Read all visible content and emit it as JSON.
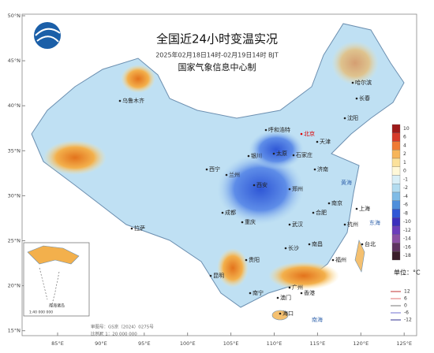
{
  "header": {
    "title": "全国近24小时变温实况",
    "subtitle": "2025年02月18日14时-02月19日14时 BJT",
    "org": "国家气象信息中心制"
  },
  "lat_labels": [
    "50°N",
    "45°N",
    "40°N",
    "35°N",
    "30°N",
    "25°N",
    "20°N",
    "15°N"
  ],
  "lon_labels": [
    "85°E",
    "90°E",
    "95°E",
    "100°E",
    "105°E",
    "110°E",
    "115°E",
    "120°E",
    "125°E"
  ],
  "cities": [
    "乌鲁木齐",
    "哈尔滨",
    "长春",
    "沈阳",
    "呼和浩特",
    "北京",
    "天津",
    "石家庄",
    "太原",
    "济南",
    "银川",
    "西宁",
    "兰州",
    "西安",
    "郑州",
    "拉萨",
    "成都",
    "重庆",
    "武汉",
    "合肥",
    "南京",
    "上海",
    "杭州",
    "长沙",
    "南昌",
    "福州",
    "贵阳",
    "昆明",
    "南宁",
    "广州",
    "香港",
    "澳门",
    "海口",
    "台北"
  ],
  "seas": [
    "黄海",
    "东海",
    "南海"
  ],
  "legend": {
    "items": [
      "10",
      "6",
      "4",
      "2",
      "1",
      "0",
      "-1",
      "-2",
      "-4",
      "-6",
      "-8",
      "-10",
      "-12",
      "-14",
      "-16",
      "-18"
    ],
    "unit": "单位：°C",
    "lines": [
      "12",
      "6",
      "0",
      "-6",
      "-12"
    ]
  },
  "inset": {
    "title": "南海诸岛",
    "scale": "1:40 000 000"
  },
  "footer": {
    "approval": "审图号：GS京（2024）0275号",
    "scale": "比例尺 1：20 000 000"
  }
}
